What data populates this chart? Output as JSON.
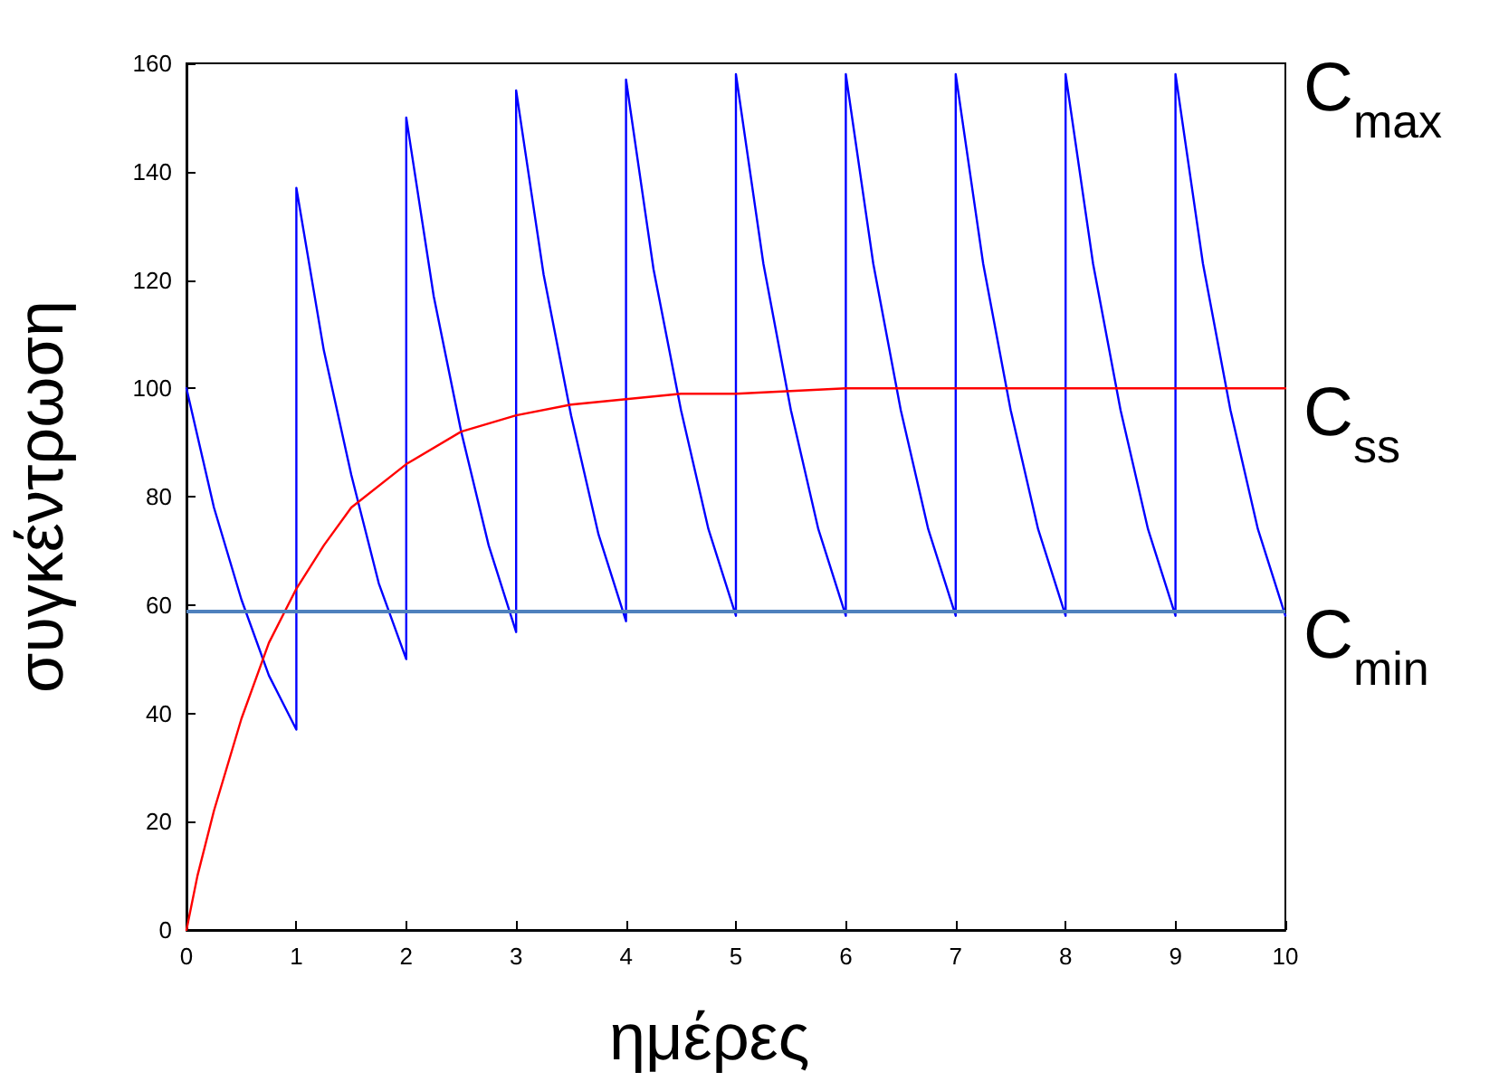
{
  "chart_data": {
    "type": "line",
    "xlabel": "ημέρες",
    "ylabel": "συγκέντρωση",
    "xlim": [
      0,
      10
    ],
    "xticks": [
      0,
      1,
      2,
      3,
      4,
      5,
      6,
      7,
      8,
      9,
      10
    ],
    "ylim": [
      0,
      160
    ],
    "yticks": [
      0,
      20,
      40,
      60,
      80,
      100,
      120,
      140,
      160
    ],
    "grid": false,
    "marker": "none",
    "line_style": "solid",
    "series": [
      {
        "color": "#0000ff",
        "x": [
          0,
          0.25,
          0.5,
          0.75,
          1,
          1,
          1.25,
          1.5,
          1.75,
          2,
          2,
          2.25,
          2.5,
          2.75,
          3,
          3,
          3.25,
          3.5,
          3.75,
          4,
          4,
          4.25,
          4.5,
          4.75,
          5,
          5,
          5.25,
          5.5,
          5.75,
          6,
          6,
          6.25,
          6.5,
          6.75,
          7,
          7,
          7.25,
          7.5,
          7.75,
          8,
          8,
          8.25,
          8.5,
          8.75,
          9,
          9,
          9.25,
          9.5,
          9.75,
          10
        ],
        "values": [
          100,
          78,
          61,
          47,
          37,
          137,
          107,
          84,
          64,
          50,
          150,
          117,
          92,
          71,
          55,
          155,
          121,
          95,
          73,
          57,
          157,
          122,
          96,
          74,
          58,
          158,
          123,
          96,
          74,
          58,
          158,
          123,
          96,
          74,
          58,
          158,
          123,
          96,
          74,
          58,
          158,
          123,
          96,
          74,
          58,
          158,
          123,
          96,
          74,
          58
        ]
      },
      {
        "color": "#ff0000",
        "x": [
          0,
          0.1,
          0.25,
          0.5,
          0.75,
          1,
          1.25,
          1.5,
          2,
          2.5,
          3,
          3.5,
          4,
          4.5,
          5,
          6,
          7,
          8,
          9,
          10
        ],
        "values": [
          0,
          10,
          22,
          39,
          53,
          63,
          71,
          78,
          86,
          92,
          95,
          97,
          98,
          99,
          99,
          100,
          100,
          100,
          100,
          100
        ]
      }
    ],
    "ref_lines": [
      {
        "axis": "y",
        "value": 59,
        "label": "C$_{min}$",
        "color": "#4f81bd",
        "line_style": "solid"
      }
    ],
    "annotations": [
      "C$_{max}$",
      {
        "text": "C$_{ss}$",
        "x": 10,
        "y": 100
      }
    ]
  }
}
